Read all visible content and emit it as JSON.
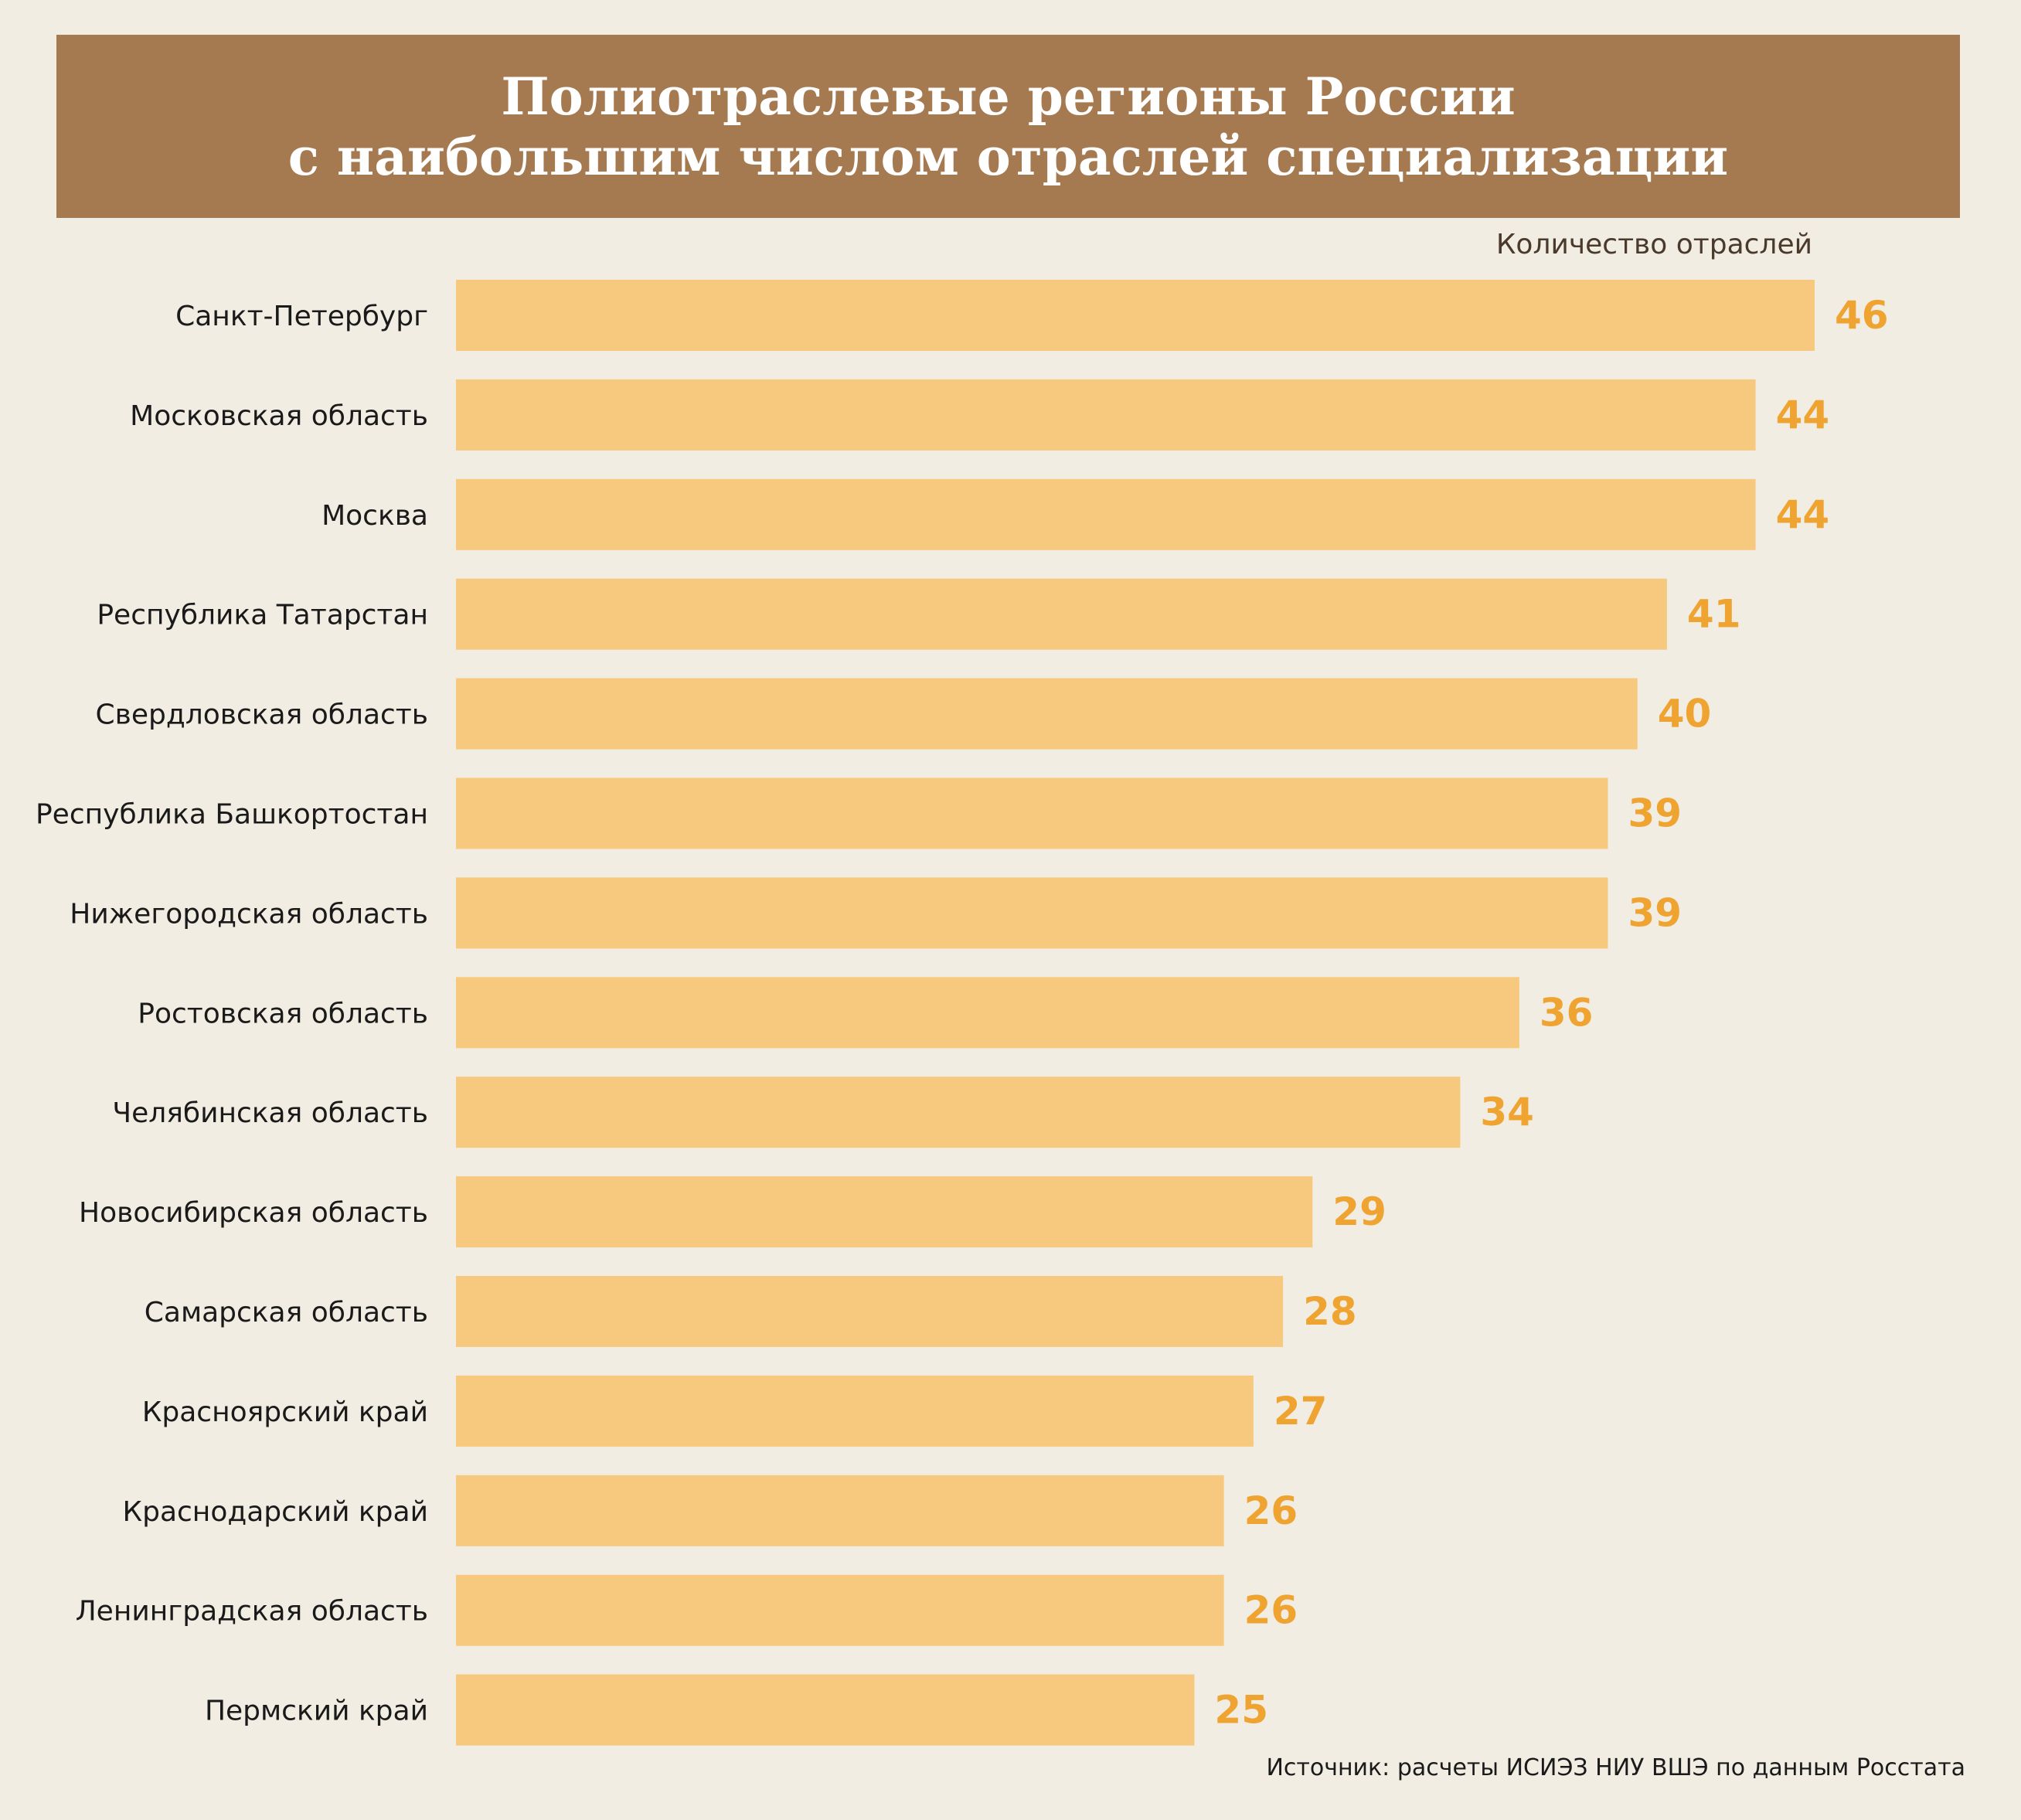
{
  "header": {
    "title_line1": "Полиотраслевые регионы России",
    "title_line2": "с наибольшим числом отраслей специализации"
  },
  "unit_label": "Количество отраслей",
  "source": "Источник: расчеты ИСИЭЗ НИУ ВШЭ по данным Росстата",
  "colors": {
    "banner": "#a67a51",
    "bar": "#f7c97e",
    "value_label": "#efa431",
    "background": "#f1ede2"
  },
  "chart_data": {
    "type": "bar",
    "orientation": "horizontal",
    "title": "Полиотраслевые регионы России с наибольшим числом отраслей специализации",
    "xlabel": "Количество отраслей",
    "ylabel": "",
    "xlim": [
      0,
      46
    ],
    "grid": false,
    "categories": [
      "Санкт-Петербург",
      "Московская область",
      "Москва",
      "Республика Татарстан",
      "Свердловская область",
      "Республика Башкортостан",
      "Нижегородская область",
      "Ростовская область",
      "Челябинская область",
      "Новосибирская область",
      "Самарская область",
      "Красноярский край",
      "Краснодарский край",
      "Ленинградская область",
      "Пермский край"
    ],
    "values": [
      46,
      44,
      44,
      41,
      40,
      39,
      39,
      36,
      34,
      29,
      28,
      27,
      26,
      26,
      25
    ]
  }
}
